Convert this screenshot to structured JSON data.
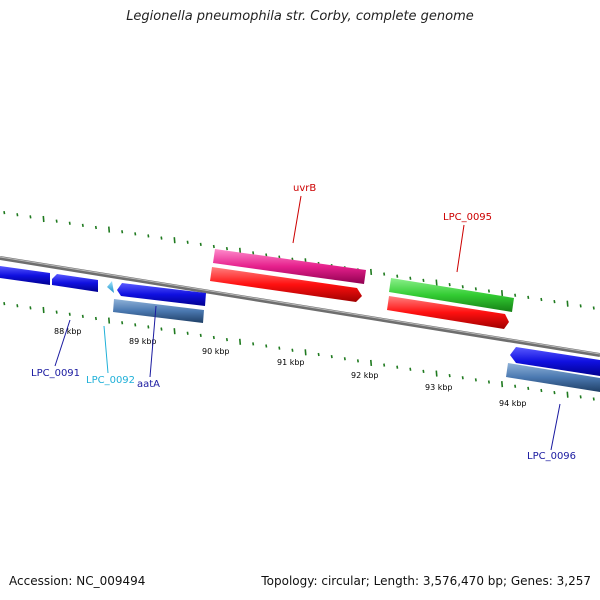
{
  "title": "Legionella pneumophila str. Corby, complete genome",
  "footer": {
    "accession": "Accession: NC_009494",
    "info": "Topology: circular; Length: 3,576,470 bp; Genes: 3,257"
  },
  "colors": {
    "backbone": "#808080",
    "tick": "#1f7a1f",
    "gene_blue": "#1010e0",
    "gene_steel": "#4a78b0",
    "gene_cyan": "#3ab8e8",
    "gene_pink": "#e6208c",
    "gene_red": "#ff1010",
    "gene_green": "#33cc33",
    "label_dark_blue": "#1a1aa0",
    "label_cyan": "#20b0d8",
    "label_red": "#cc0000"
  },
  "ticks": [
    {
      "label": "88 kbp",
      "kb": 88
    },
    {
      "label": "89 kbp",
      "kb": 89
    },
    {
      "label": "90 kbp",
      "kb": 90
    },
    {
      "label": "91 kbp",
      "kb": 91
    },
    {
      "label": "92 kbp",
      "kb": 92
    },
    {
      "label": "93 kbp",
      "kb": 93
    },
    {
      "label": "94 kbp",
      "kb": 94
    }
  ],
  "genes": [
    {
      "label": "LPC_0091",
      "color": "gene_blue",
      "label_color": "label_dark_blue"
    },
    {
      "label": "LPC_0092",
      "color": "gene_cyan",
      "label_color": "label_cyan"
    },
    {
      "label": "aatA",
      "color": "gene_blue",
      "label_color": "label_dark_blue"
    },
    {
      "label": "uvrB",
      "color": "gene_pink",
      "label_color": "label_red"
    },
    {
      "label": "LPC_0095",
      "color": "gene_green",
      "label_color": "label_red"
    },
    {
      "label": "LPC_0096",
      "color": "gene_blue",
      "label_color": "label_dark_blue"
    }
  ]
}
